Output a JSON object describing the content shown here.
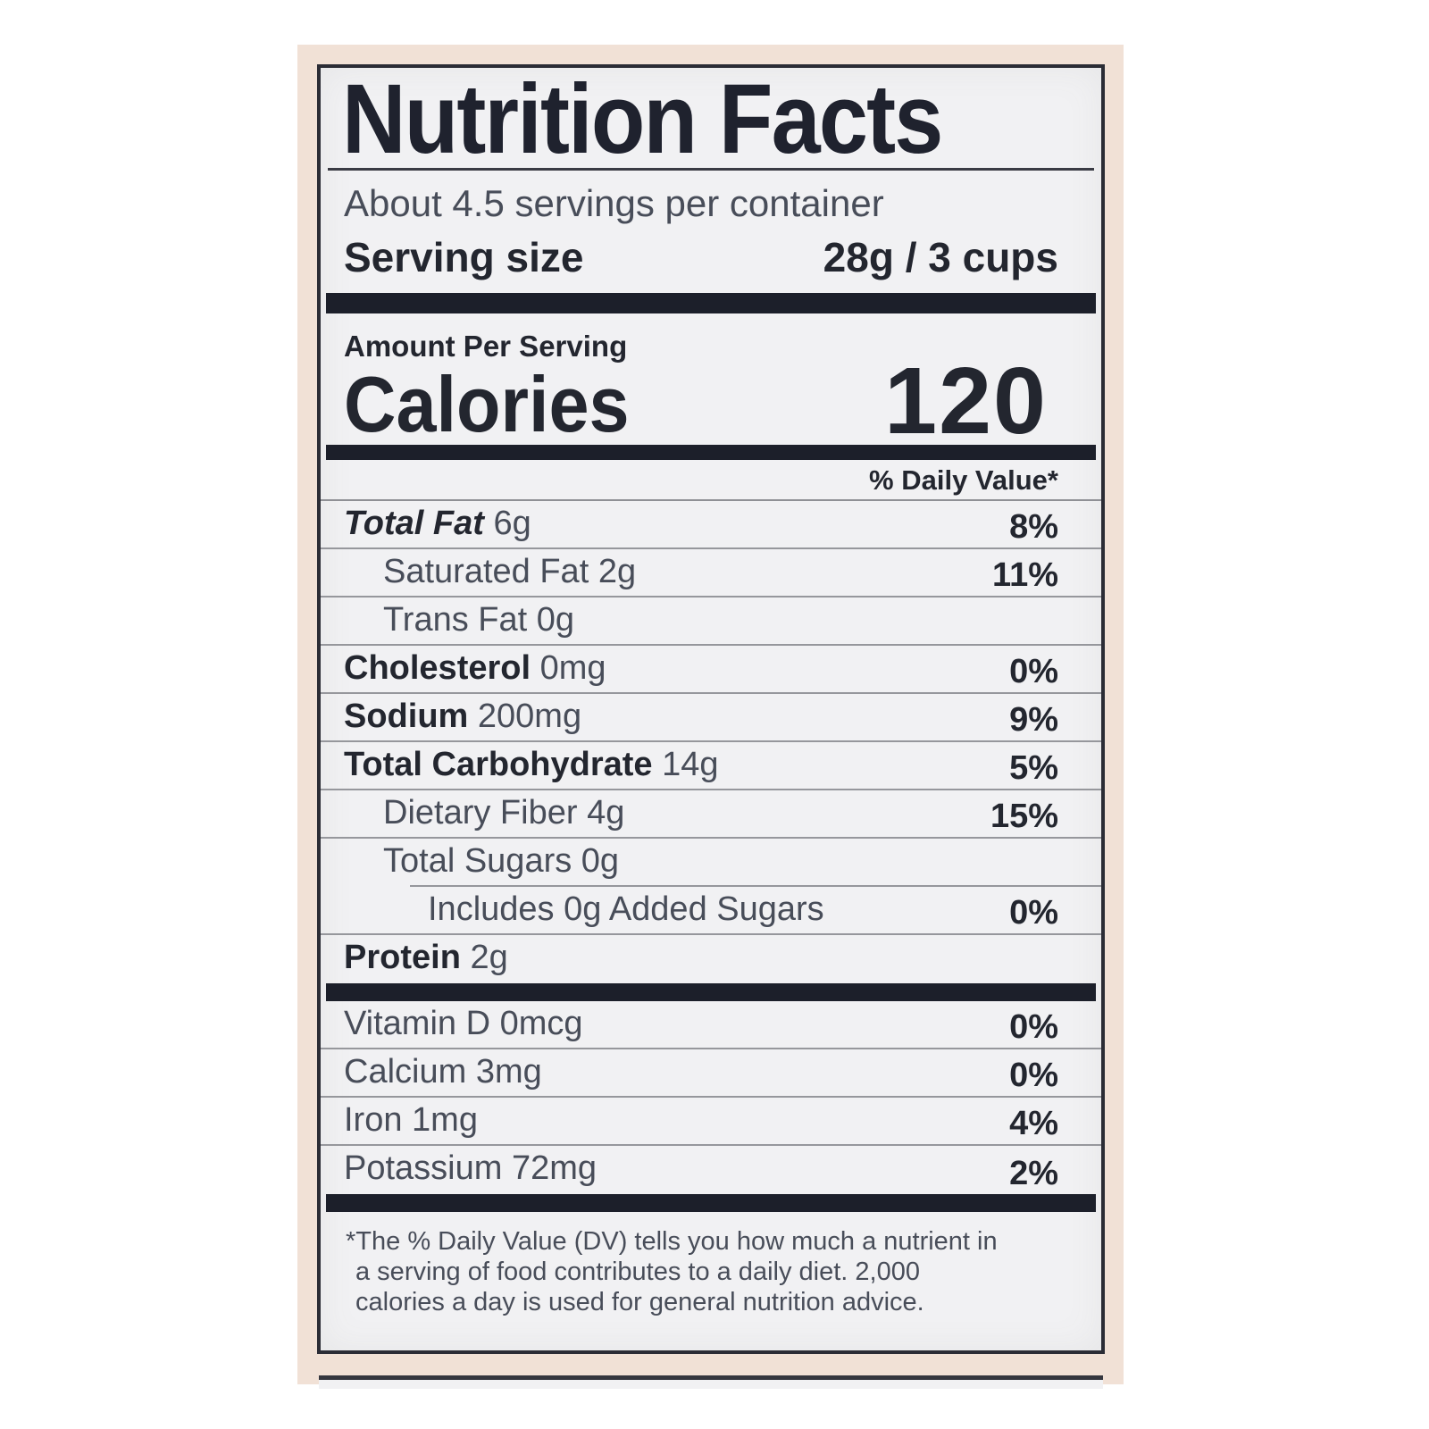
{
  "label": {
    "title": "Nutrition Facts",
    "servings_per_container": "About 4.5 servings per container",
    "serving_size_label": "Serving size",
    "serving_size_value": "28g / 3 cups",
    "amount_per_serving": "Amount Per Serving",
    "calories_label": "Calories",
    "calories_value": "120",
    "daily_value_header": "% Daily Value*",
    "rows": [
      {
        "name": "Total Fat",
        "amount": "6g",
        "dv": "8%"
      },
      {
        "name": "Saturated Fat",
        "amount": "2g",
        "dv": "11%"
      },
      {
        "name": "Trans Fat",
        "amount": "0g",
        "dv": ""
      },
      {
        "name": "Cholesterol",
        "amount": "0mg",
        "dv": "0%"
      },
      {
        "name": "Sodium",
        "amount": "200mg",
        "dv": "9%"
      },
      {
        "name": "Total Carbohydrate",
        "amount": "14g",
        "dv": "5%"
      },
      {
        "name": "Dietary Fiber",
        "amount": "4g",
        "dv": "15%"
      },
      {
        "name": "Total Sugars",
        "amount": "0g",
        "dv": ""
      },
      {
        "name": "Includes 0g Added Sugars",
        "amount": "",
        "dv": "0%"
      },
      {
        "name": "Protein",
        "amount": "2g",
        "dv": ""
      }
    ],
    "micronutrients": [
      {
        "name": "Vitamin D",
        "amount": "0mcg",
        "dv": "0%"
      },
      {
        "name": "Calcium",
        "amount": "3mg",
        "dv": "0%"
      },
      {
        "name": "Iron",
        "amount": "1mg",
        "dv": "4%"
      },
      {
        "name": "Potassium",
        "amount": "72mg",
        "dv": "2%"
      }
    ],
    "footnote": "*The % Daily Value (DV) tells you how much a nutrient in a serving of food contributes to a daily diet. 2,000 calories a day is used for general nutrition advice."
  },
  "colors": {
    "photo_background": "#f1e1d6",
    "label_background": "#f1f1f3",
    "ink": "#23262f",
    "secondary_ink": "#484d59",
    "bar": "#1c1f2a",
    "separator": "#96979c"
  }
}
